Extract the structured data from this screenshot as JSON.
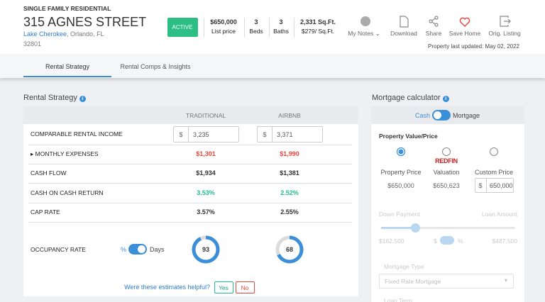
{
  "header": {
    "property_type": "SINGLE FAMILY RESIDENTIAL",
    "address": "315 AGNES STREET",
    "neighborhood": "Lake Cherokee",
    "city": ", Orlando, FL",
    "zip": "32801",
    "status": "ACTIVE",
    "stats": [
      {
        "value": "$650,000",
        "label": "List price"
      },
      {
        "value": "3",
        "label": "Beds"
      },
      {
        "value": "3",
        "label": "Baths"
      },
      {
        "value": "2,331 Sq.Ft.",
        "label": "$279/ Sq.Ft."
      }
    ],
    "actions": [
      "My Notes",
      "Download",
      "Share",
      "Save Home",
      "Orig. Listing"
    ],
    "last_updated": "Property last updated: May 02, 2022"
  },
  "tabs": [
    "Rental Strategy",
    "Rental Comps & Insights"
  ],
  "rental_strategy": {
    "title": "Rental Strategy",
    "columns": [
      "TRADITIONAL",
      "AIRBNB"
    ],
    "currency": "$",
    "rows": [
      {
        "label": "COMPARABLE RENTAL INCOME",
        "values": [
          "3,235",
          "3,371"
        ]
      },
      {
        "label": "MONTHLY EXPENSES",
        "values": [
          "$1,301",
          "$1,990"
        ]
      },
      {
        "label": "CASH FLOW",
        "values": [
          "$1,934",
          "$1,381"
        ]
      },
      {
        "label": "CASH ON CASH RETURN",
        "values": [
          "3.53%",
          "2.52%"
        ]
      },
      {
        "label": "CAP RATE",
        "values": [
          "3.57%",
          "2.55%"
        ]
      }
    ],
    "occupancy": {
      "label": "OCCUPANCY RATE",
      "toggle": [
        "%",
        "Days"
      ],
      "values": [
        "93",
        "68"
      ]
    },
    "feedback": {
      "question": "Were these estimates helpful?",
      "yes": "Yes",
      "no": "No"
    }
  },
  "mortgage": {
    "title": "Mortgage calculator",
    "toggle": [
      "Cash",
      "Mortgage"
    ],
    "section": "Property Value/Price",
    "brand": "REDFIN",
    "options": [
      {
        "label": "Property Price",
        "value": "$650,000"
      },
      {
        "label": "Valuation",
        "value": "$650,623"
      },
      {
        "label": "Custom Price",
        "value": "650,000"
      }
    ],
    "currency": "$",
    "percent": "%",
    "down_payment": "Down Payment",
    "loan_amount": "Loan Amount",
    "down_value": "$162,500",
    "loan_value": "$487,500",
    "mortgage_type": "Mortgage Type",
    "mortgage_type_value": "Fixed Rate Mortgage",
    "loan_term": "Loan Term"
  }
}
